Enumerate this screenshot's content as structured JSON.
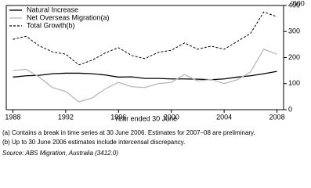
{
  "chart_data": {
    "type": "line",
    "x_label": "Year ended 30 June",
    "y_label": "'000",
    "x": [
      1988,
      1989,
      1990,
      1991,
      1992,
      1993,
      1994,
      1995,
      1996,
      1997,
      1998,
      1999,
      2000,
      2001,
      2002,
      2003,
      2004,
      2005,
      2006,
      2007,
      2008
    ],
    "series": [
      {
        "name": "Natural Increase",
        "color": "#000000",
        "line_style": "solid",
        "values": [
          125,
          130,
          132,
          138,
          140,
          140,
          138,
          133,
          125,
          126,
          120,
          120,
          118,
          118,
          117,
          115,
          118,
          125,
          130,
          138,
          147
        ]
      },
      {
        "name": "Net Overseas Migration(a)",
        "color": "#b8b8b8",
        "line_style": "solid",
        "values": [
          150,
          155,
          125,
          85,
          70,
          30,
          45,
          80,
          105,
          88,
          85,
          100,
          105,
          135,
          110,
          116,
          100,
          115,
          145,
          232,
          213
        ]
      },
      {
        "name": "Total Growth(b)",
        "color": "#000000",
        "line_style": "dashed",
        "values": [
          270,
          282,
          245,
          222,
          213,
          172,
          190,
          218,
          238,
          208,
          196,
          220,
          228,
          256,
          232,
          244,
          232,
          262,
          293,
          375,
          357
        ]
      }
    ],
    "xlim": [
      1987.5,
      2008.5
    ],
    "xticks": [
      1988,
      1992,
      1996,
      2000,
      2004,
      2008
    ],
    "ylim": [
      0,
      400
    ],
    "yticks": [
      0,
      100,
      200,
      300,
      400
    ],
    "legend": "top-left",
    "notes": [
      "(a) Contains a break in time series at 30 June 2006. Estimates for 2007–08 are preliminary.",
      "(b) Up to 30 June 2006 estimates include intercensal discrepancy."
    ],
    "source": "Source: ABS Migration, Australia (3412.0)"
  }
}
